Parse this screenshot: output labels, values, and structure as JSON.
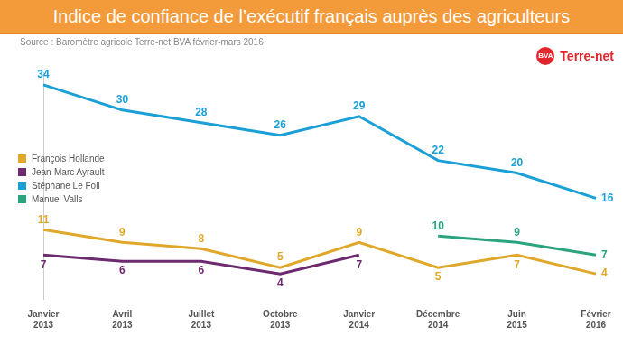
{
  "chart_data": {
    "type": "line",
    "title": "Indice de confiance de l’exécutif français auprès des agriculteurs",
    "source": "Source : Baromètre agricole Terre-net BVA février-mars 2016",
    "annotations": [
      "BVA",
      "Terre-net"
    ],
    "categories": [
      "Janvier 2013",
      "Avril 2013",
      "Juillet 2013",
      "Octobre 2013",
      "Janvier 2014",
      "Décembre 2014",
      "Juin 2015",
      "Février 2016"
    ],
    "series": [
      {
        "name": "François Hollande",
        "color": "#e0a82a",
        "values": [
          11,
          9,
          8,
          5,
          9,
          5,
          7,
          4
        ]
      },
      {
        "name": "Jean-Marc Ayrault",
        "color": "#6e2a6e",
        "values": [
          7,
          6,
          6,
          4,
          7,
          null,
          null,
          null
        ]
      },
      {
        "name": "Stéphane Le Foll",
        "color": "#1a9fd6",
        "values": [
          34,
          30,
          28,
          26,
          29,
          22,
          20,
          16
        ]
      },
      {
        "name": "Manuel Valls",
        "color": "#2aa37f",
        "values": [
          null,
          null,
          null,
          null,
          null,
          10,
          9,
          7
        ]
      }
    ],
    "ylim": [
      0,
      36
    ],
    "tick_labels": "x",
    "grid": false,
    "data_labels": true,
    "legend": "left"
  }
}
